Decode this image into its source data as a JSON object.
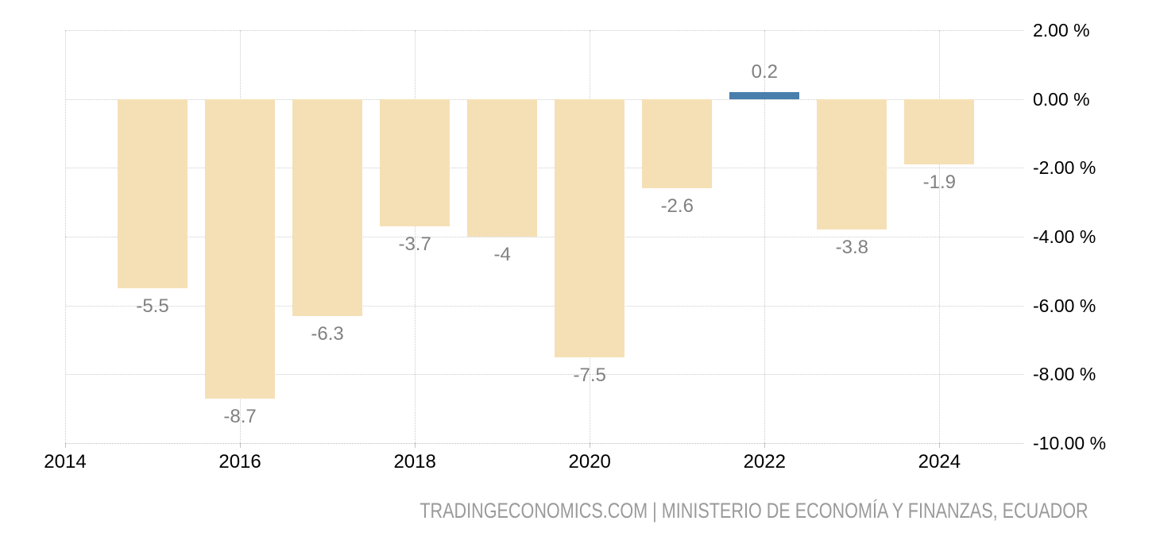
{
  "chart_data": {
    "type": "bar",
    "title": "",
    "x": [
      2015,
      2016,
      2017,
      2018,
      2019,
      2020,
      2021,
      2022,
      2023,
      2024
    ],
    "values": [
      -5.5,
      -8.7,
      -6.3,
      -3.7,
      -4,
      -7.5,
      -2.6,
      0.2,
      -3.8,
      -1.9
    ],
    "bar_labels": [
      "-5.5",
      "-8.7",
      "-6.3",
      "-3.7",
      "-4",
      "-7.5",
      "-2.6",
      "0.2",
      "-3.8",
      "-1.9"
    ],
    "x_tick_years": [
      2014,
      2016,
      2018,
      2020,
      2022,
      2024
    ],
    "x_tick_labels": [
      "2014",
      "2016",
      "2018",
      "2020",
      "2022",
      "2024"
    ],
    "y_tick_values": [
      2,
      0,
      -2,
      -4,
      -6,
      -8,
      -10
    ],
    "y_tick_labels": [
      "2.00 %",
      "0.00 %",
      "-2.00 %",
      "-4.00 %",
      "-6.00 %",
      "-8.00 %",
      "-10.00 %"
    ],
    "ylim": [
      -10,
      2
    ],
    "xlim": [
      2014,
      2024.96
    ],
    "grid": true,
    "y_axis_side": "right",
    "colors": {
      "bar_negative": "#F5E0B6",
      "bar_positive": "#4A7EAC",
      "gridline": "#CCCCCC",
      "axis_line": "#BDBDBD",
      "bar_label": "#818181",
      "axis_label": "#000000",
      "footer": "#9A9A9A",
      "background": "#FFFFFF"
    }
  },
  "footer": {
    "text": "TRADINGECONOMICS.COM | MINISTERIO DE ECONOMÍA Y FINANZAS, ECUADOR"
  }
}
